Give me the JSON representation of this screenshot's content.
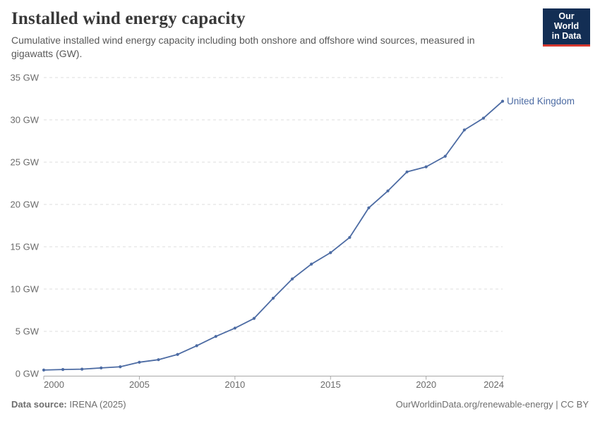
{
  "header": {
    "title": "Installed wind energy capacity",
    "subtitle": "Cumulative installed wind energy capacity including both onshore and offshore wind sources, measured in gigawatts (GW).",
    "logo": {
      "line1": "Our World",
      "line2": "in Data"
    }
  },
  "footer": {
    "source_label": "Data source:",
    "source_value": "IRENA (2025)",
    "right_text": "OurWorldinData.org/renewable-energy | CC BY"
  },
  "colors": {
    "series_blue": "#4c6ba3",
    "logo_navy": "#132e54",
    "logo_red": "#d6382f",
    "gridline": "#dedede",
    "axis_line": "#a8a8a8",
    "tick_text": "#6b6b6b",
    "title_text": "#383838",
    "subtitle_text": "#595959"
  },
  "chart_data": {
    "type": "line",
    "title": "Installed wind energy capacity",
    "xlabel": "",
    "ylabel": "GW",
    "unit_suffix": " GW",
    "xlim": [
      2000,
      2024
    ],
    "ylim": [
      0,
      35
    ],
    "xticks": [
      2000,
      2005,
      2010,
      2015,
      2020,
      2024
    ],
    "yticks": [
      0,
      5,
      10,
      15,
      20,
      25,
      30,
      35
    ],
    "grid": "horizontal-dashed",
    "legend_position": "line-end-label",
    "x": [
      2000,
      2001,
      2002,
      2003,
      2004,
      2005,
      2006,
      2007,
      2008,
      2009,
      2010,
      2011,
      2012,
      2013,
      2014,
      2015,
      2016,
      2017,
      2018,
      2019,
      2020,
      2021,
      2022,
      2023,
      2024
    ],
    "series": [
      {
        "name": "United Kingdom",
        "color": "#4c6ba3",
        "values": [
          0.43,
          0.49,
          0.53,
          0.68,
          0.81,
          1.35,
          1.65,
          2.27,
          3.3,
          4.4,
          5.38,
          6.53,
          8.92,
          11.2,
          12.95,
          14.3,
          16.1,
          19.6,
          21.6,
          23.85,
          24.45,
          25.7,
          28.8,
          30.2,
          32.2
        ]
      }
    ]
  }
}
